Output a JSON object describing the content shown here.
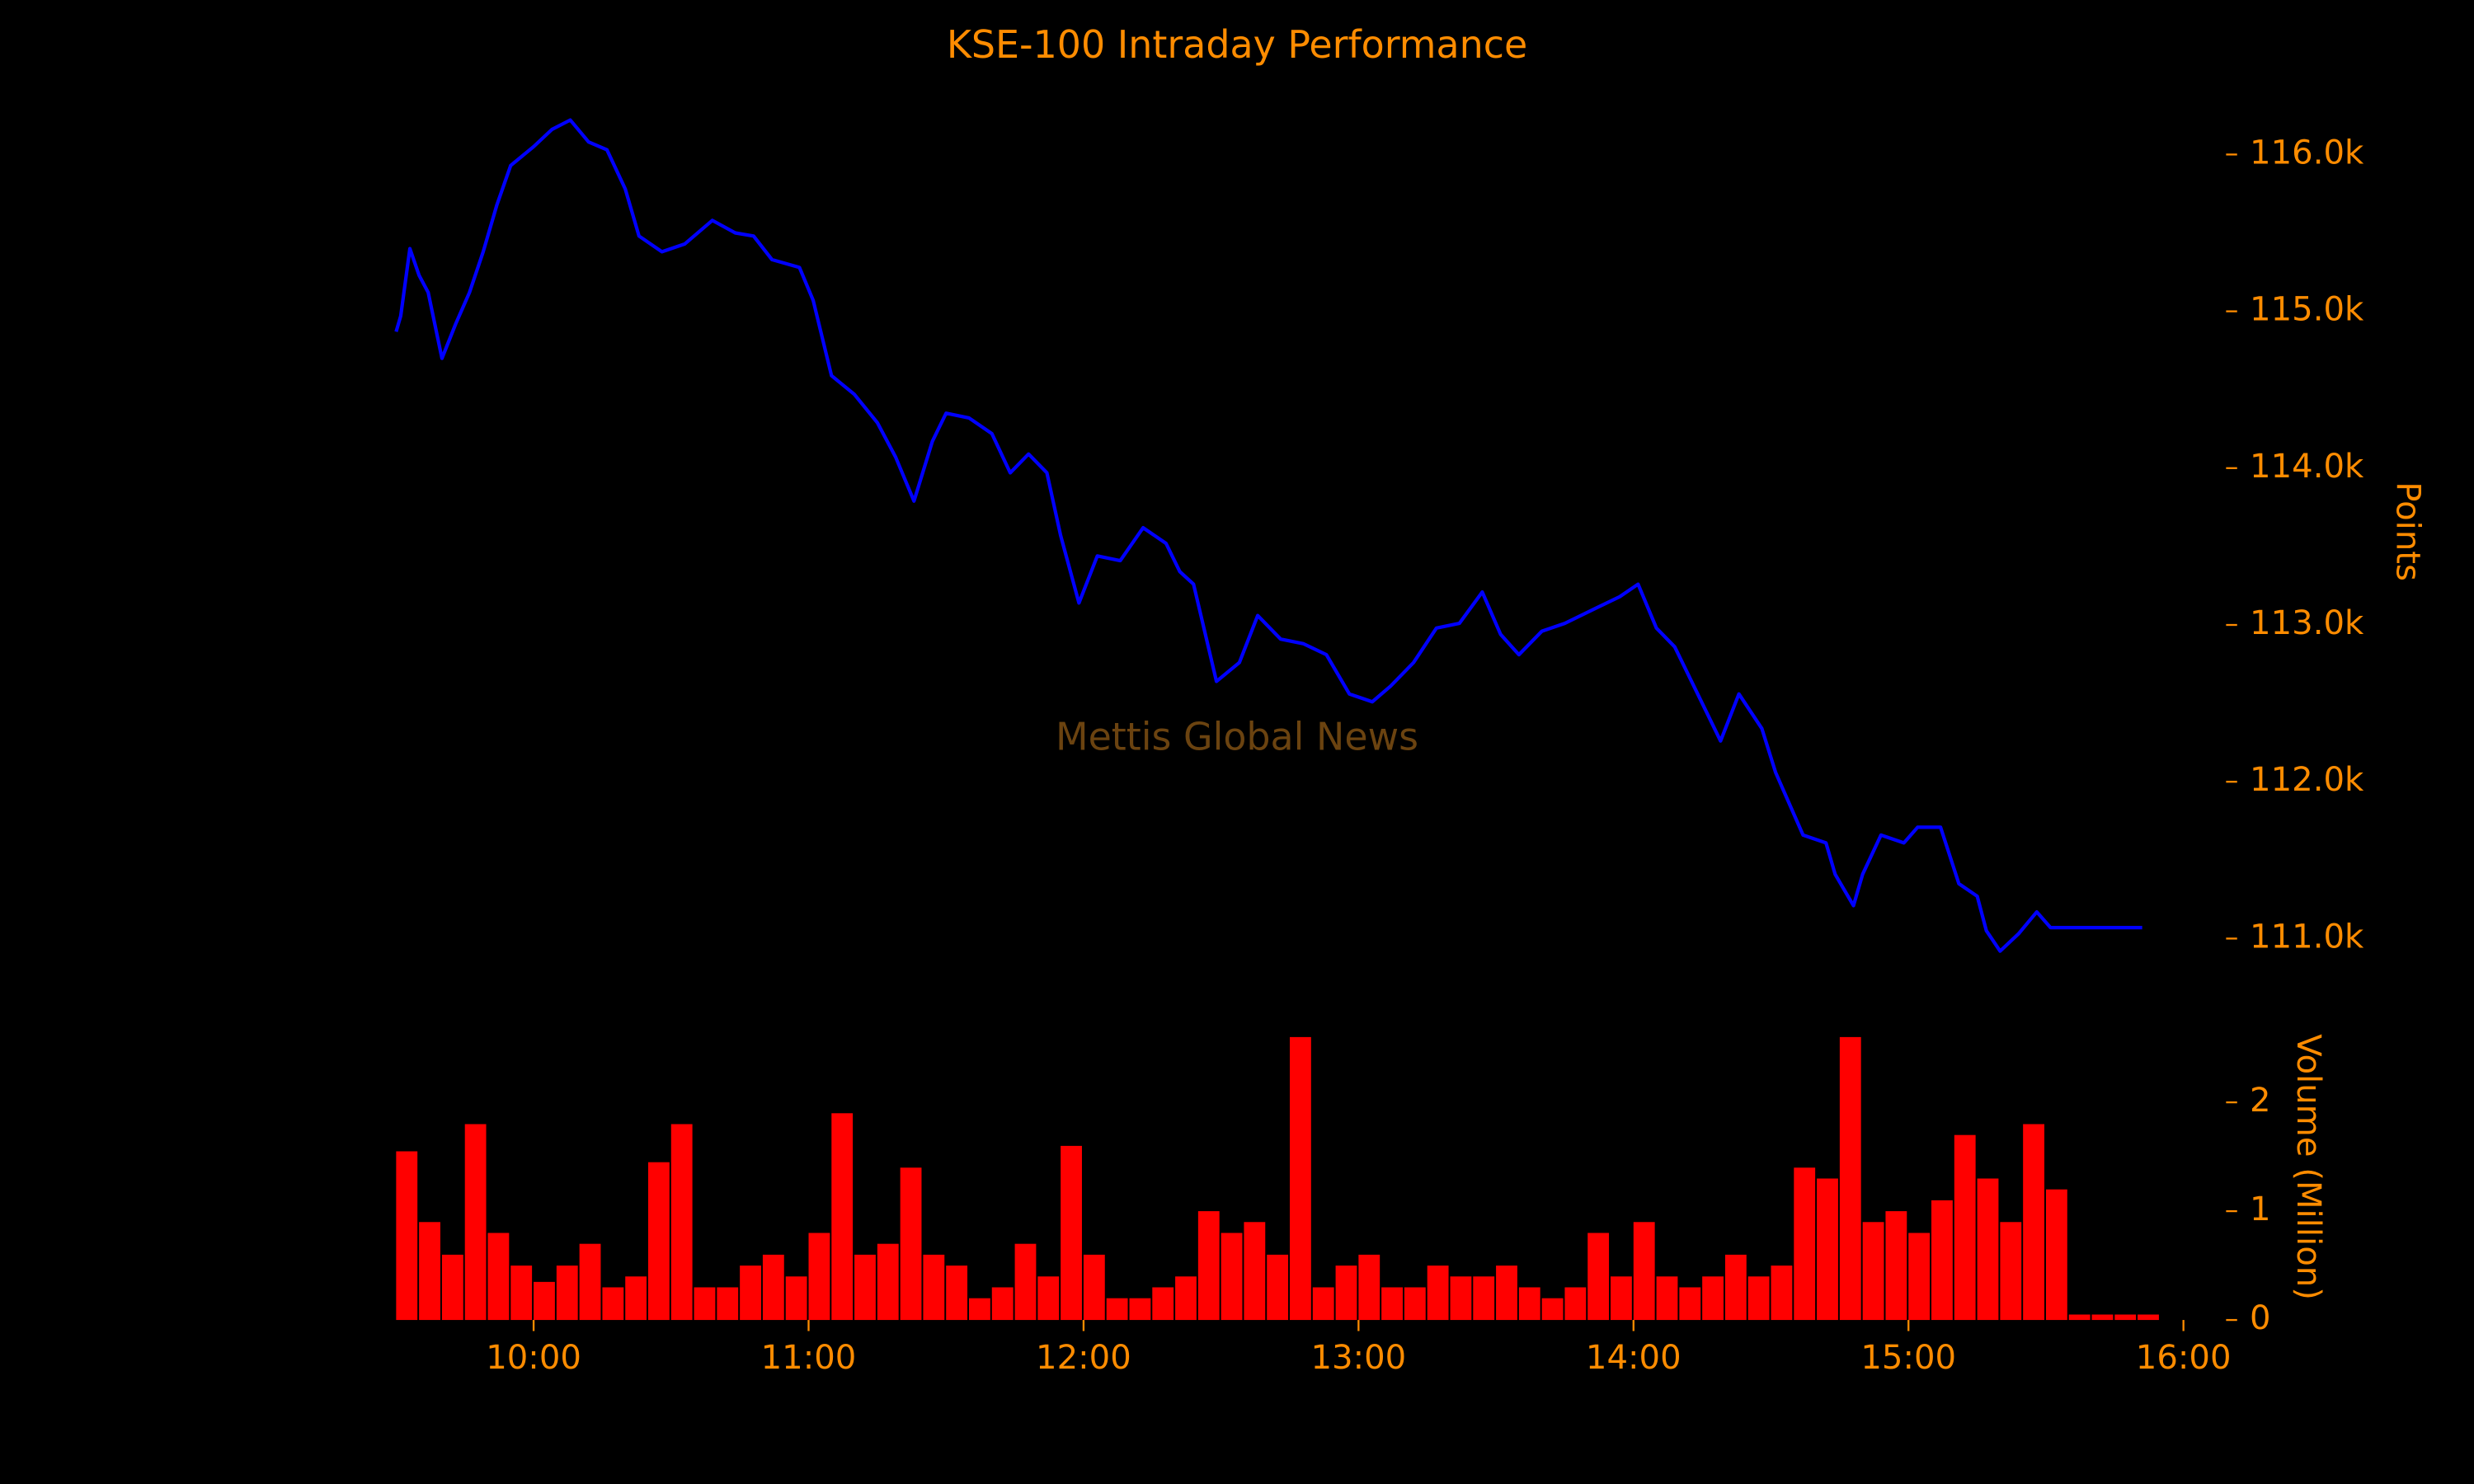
{
  "chart_data": [
    {
      "type": "line",
      "title": "KSE-100 Intraday Performance",
      "annotation": "Mettis Global News",
      "y_label": "Points",
      "color": "#0000ff",
      "x": [
        "09:30",
        "09:31",
        "09:33",
        "09:35",
        "09:37",
        "09:40",
        "09:43",
        "09:46",
        "09:49",
        "09:52",
        "09:55",
        "10:00",
        "10:04",
        "10:08",
        "10:12",
        "10:16",
        "10:20",
        "10:23",
        "10:28",
        "10:33",
        "10:39",
        "10:44",
        "10:48",
        "10:52",
        "10:58",
        "11:01",
        "11:05",
        "11:10",
        "11:15",
        "11:19",
        "11:23",
        "11:27",
        "11:30",
        "11:35",
        "11:40",
        "11:44",
        "11:48",
        "11:52",
        "11:55",
        "11:59",
        "12:03",
        "12:08",
        "12:13",
        "12:18",
        "12:21",
        "12:24",
        "12:29",
        "12:34",
        "12:38",
        "12:43",
        "12:48",
        "12:53",
        "12:58",
        "13:03",
        "13:07",
        "13:12",
        "13:17",
        "13:22",
        "13:27",
        "13:31",
        "13:35",
        "13:40",
        "13:45",
        "13:52",
        "13:57",
        "14:01",
        "14:05",
        "14:09",
        "14:14",
        "14:19",
        "14:23",
        "14:28",
        "14:31",
        "14:37",
        "14:42",
        "14:44",
        "14:48",
        "14:50",
        "14:54",
        "14:59",
        "15:02",
        "15:07",
        "15:11",
        "15:15",
        "15:17",
        "15:20",
        "15:24",
        "15:28",
        "15:31",
        "15:51"
      ],
      "values": [
        114870,
        114970,
        115400,
        115230,
        115120,
        114700,
        114920,
        115120,
        115380,
        115680,
        115930,
        116050,
        116160,
        116220,
        116080,
        116030,
        115780,
        115480,
        115380,
        115430,
        115580,
        115500,
        115480,
        115330,
        115280,
        115070,
        114590,
        114470,
        114290,
        114070,
        113790,
        114170,
        114350,
        114320,
        114220,
        113970,
        114090,
        113970,
        113570,
        113140,
        113440,
        113410,
        113620,
        113520,
        113340,
        113260,
        112640,
        112760,
        113060,
        112910,
        112880,
        112810,
        112560,
        112510,
        112610,
        112760,
        112980,
        113010,
        113210,
        112940,
        112810,
        112960,
        113010,
        113110,
        113180,
        113260,
        112980,
        112860,
        112560,
        112260,
        112560,
        112340,
        112060,
        111660,
        111610,
        111410,
        111210,
        111410,
        111660,
        111610,
        111710,
        111710,
        111350,
        111270,
        111050,
        110920,
        111030,
        111170,
        111070,
        111070
      ],
      "xlim": [
        "09:20",
        "16:05"
      ],
      "ylim": [
        110750,
        116400
      ],
      "yticks": [
        {
          "value": 111000,
          "label": "111.0k"
        },
        {
          "value": 112000,
          "label": "112.0k"
        },
        {
          "value": 113000,
          "label": "113.0k"
        },
        {
          "value": 114000,
          "label": "114.0k"
        },
        {
          "value": 115000,
          "label": "115.0k"
        },
        {
          "value": 116000,
          "label": "116.0k"
        }
      ]
    },
    {
      "type": "bar",
      "y_label": "Volume (Million)",
      "color": "#ff0000",
      "x": [
        "09:30",
        "09:35",
        "09:40",
        "09:45",
        "09:50",
        "09:55",
        "10:00",
        "10:05",
        "10:10",
        "10:15",
        "10:20",
        "10:25",
        "10:30",
        "10:35",
        "10:40",
        "10:45",
        "10:50",
        "10:55",
        "11:00",
        "11:05",
        "11:10",
        "11:15",
        "11:20",
        "11:25",
        "11:30",
        "11:35",
        "11:40",
        "11:45",
        "11:50",
        "11:55",
        "12:00",
        "12:05",
        "12:10",
        "12:15",
        "12:20",
        "12:25",
        "12:30",
        "12:35",
        "12:40",
        "12:45",
        "12:50",
        "12:55",
        "13:00",
        "13:05",
        "13:10",
        "13:15",
        "13:20",
        "13:25",
        "13:30",
        "13:35",
        "13:40",
        "13:45",
        "13:50",
        "13:55",
        "14:00",
        "14:05",
        "14:10",
        "14:15",
        "14:20",
        "14:25",
        "14:30",
        "14:35",
        "14:40",
        "14:45",
        "14:50",
        "14:55",
        "15:00",
        "15:05",
        "15:10",
        "15:15",
        "15:20",
        "15:25",
        "15:30",
        "15:35",
        "15:40",
        "15:45",
        "15:50"
      ],
      "values": [
        1.55,
        0.9,
        0.6,
        1.8,
        0.8,
        0.5,
        0.35,
        0.5,
        0.7,
        0.3,
        0.4,
        1.45,
        1.8,
        0.3,
        0.3,
        0.5,
        0.6,
        0.4,
        0.8,
        1.9,
        0.6,
        0.7,
        1.4,
        0.6,
        0.5,
        0.2,
        0.3,
        0.7,
        0.4,
        1.6,
        0.6,
        0.2,
        0.2,
        0.3,
        0.4,
        1.0,
        0.8,
        0.9,
        0.6,
        2.6,
        0.3,
        0.5,
        0.6,
        0.3,
        0.3,
        0.5,
        0.4,
        0.4,
        0.5,
        0.3,
        0.2,
        0.3,
        0.8,
        0.4,
        0.9,
        0.4,
        0.3,
        0.4,
        0.6,
        0.4,
        0.5,
        1.4,
        1.3,
        2.6,
        0.9,
        1.0,
        0.8,
        1.1,
        1.7,
        1.3,
        0.9,
        1.8,
        1.2,
        0.05,
        0.05,
        0.05,
        0.05
      ],
      "xlim": [
        "09:20",
        "16:05"
      ],
      "ylim": [
        0,
        2.7
      ],
      "yticks": [
        0,
        1,
        2
      ],
      "xticks": [
        "10:00",
        "11:00",
        "12:00",
        "13:00",
        "14:00",
        "15:00",
        "16:00"
      ]
    }
  ]
}
